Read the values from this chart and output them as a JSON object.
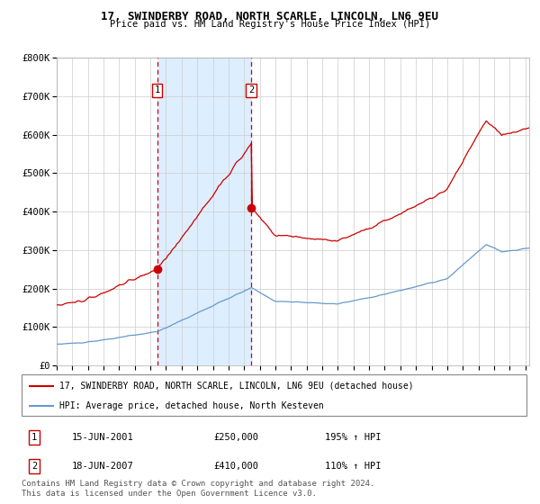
{
  "title1": "17, SWINDERBY ROAD, NORTH SCARLE, LINCOLN, LN6 9EU",
  "title2": "Price paid vs. HM Land Registry's House Price Index (HPI)",
  "legend_line1": "17, SWINDERBY ROAD, NORTH SCARLE, LINCOLN, LN6 9EU (detached house)",
  "legend_line2": "HPI: Average price, detached house, North Kesteven",
  "annotation1_date": "15-JUN-2001",
  "annotation1_price": "£250,000",
  "annotation1_hpi": "195% ↑ HPI",
  "annotation2_date": "18-JUN-2007",
  "annotation2_price": "£410,000",
  "annotation2_hpi": "110% ↑ HPI",
  "footer": "Contains HM Land Registry data © Crown copyright and database right 2024.\nThis data is licensed under the Open Government Licence v3.0.",
  "red_color": "#cc0000",
  "blue_color": "#6699cc",
  "bg_color": "#ffffff",
  "grid_color": "#cccccc",
  "shade_color": "#ddeeff",
  "ylim": [
    0,
    800000
  ],
  "yticks": [
    0,
    100000,
    200000,
    300000,
    400000,
    500000,
    600000,
    700000,
    800000
  ],
  "ytick_labels": [
    "£0",
    "£100K",
    "£200K",
    "£300K",
    "£400K",
    "£500K",
    "£600K",
    "£700K",
    "£800K"
  ],
  "purchase1_year": 2001.46,
  "purchase1_price": 250000,
  "purchase2_year": 2007.46,
  "purchase2_price": 410000,
  "xstart": 1995.0,
  "xend": 2025.25
}
